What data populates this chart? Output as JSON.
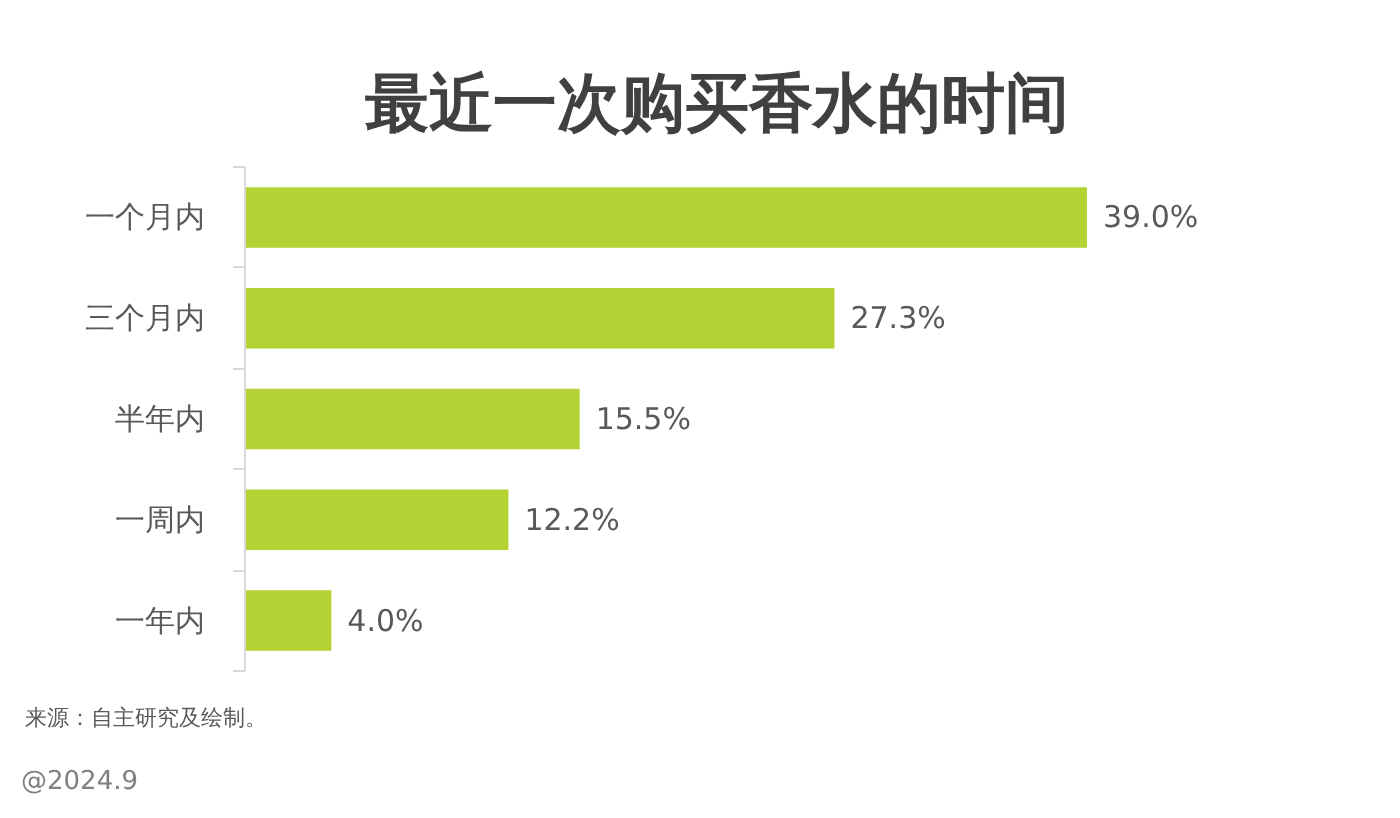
{
  "chart_data": {
    "type": "bar",
    "orientation": "horizontal",
    "title": "最近一次购买香水的时间",
    "categories": [
      "一个月内",
      "三个月内",
      "半年内",
      "一周内",
      "一年内"
    ],
    "values": [
      39.0,
      27.3,
      15.5,
      12.2,
      4.0
    ],
    "color": "#b3d334",
    "value_labels": [
      "39.0%",
      "27.3%",
      "15.5%",
      "12.2%",
      "4.0%"
    ],
    "annotations": [
      "来源：自主研究及绘制。",
      "@2024.9"
    ]
  }
}
